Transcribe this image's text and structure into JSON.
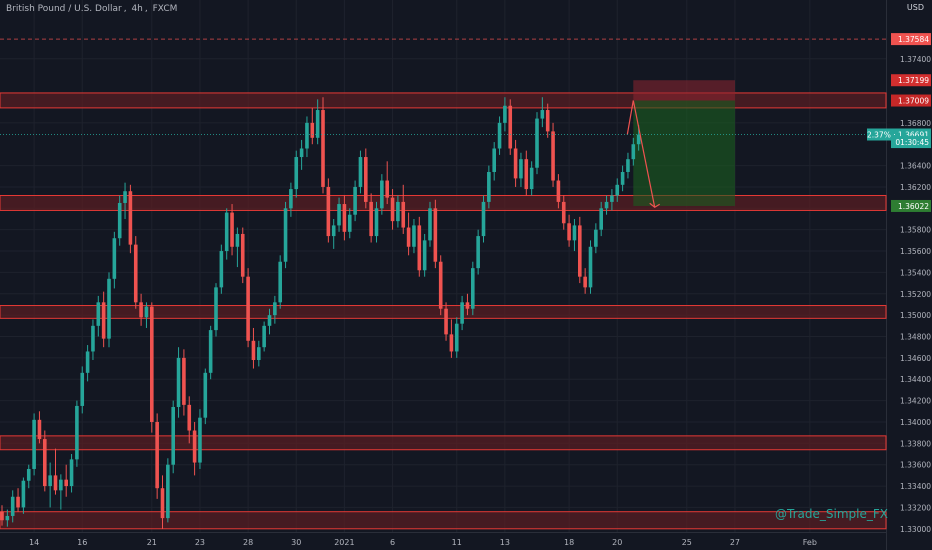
{
  "header": {
    "symbol": "British Pound / U.S. Dollar",
    "interval": "4h",
    "exchange": "FXCM",
    "sep1": ",",
    "sep2": ","
  },
  "currency_label": "USD",
  "watermark": "@Trade_Simple_FX",
  "colors": {
    "background": "#131722",
    "up": "#26a69a",
    "down": "#ef5350",
    "zone_fill": "#5b1e22",
    "zone_border": "#e53935",
    "grid": "#1e222d",
    "axis_text": "#b2b5be"
  },
  "chart_data": {
    "type": "candlestick",
    "ylim": [
      1.3297,
      1.3795
    ],
    "y_ticks": [
      "1.33000",
      "1.33200",
      "1.33400",
      "1.33600",
      "1.33800",
      "1.34000",
      "1.34200",
      "1.34400",
      "1.34600",
      "1.34800",
      "1.35000",
      "1.35200",
      "1.35400",
      "1.35600",
      "1.35800",
      "1.36000",
      "1.36200",
      "1.36400",
      "1.36800",
      "1.37400"
    ],
    "x_ticks": [
      {
        "label": "14",
        "index": 6
      },
      {
        "label": "16",
        "index": 15
      },
      {
        "label": "21",
        "index": 28
      },
      {
        "label": "23",
        "index": 37
      },
      {
        "label": "28",
        "index": 46
      },
      {
        "label": "30",
        "index": 55
      },
      {
        "label": "2021",
        "index": 64
      },
      {
        "label": "6",
        "index": 73
      },
      {
        "label": "11",
        "index": 85
      },
      {
        "label": "13",
        "index": 94
      },
      {
        "label": "18",
        "index": 106
      },
      {
        "label": "20",
        "index": 115
      },
      {
        "label": "25",
        "index": 128
      },
      {
        "label": "27",
        "index": 137
      },
      {
        "label": "Feb",
        "index": 151
      }
    ],
    "price_labels": [
      {
        "text": "1.37584",
        "value": 1.37584,
        "color": "#ef5350",
        "dashed": true
      },
      {
        "text": "1.37199",
        "value": 1.37199,
        "color": "#d32f2f"
      },
      {
        "text": "1.37009",
        "value": 1.37009,
        "color": "#c62828"
      },
      {
        "text": "2.37% · 1.36691",
        "value": 1.36691,
        "color": "#26a69a",
        "dotted": true
      },
      {
        "text": "01:30:45",
        "value": 1.3662,
        "color": "#26a69a"
      },
      {
        "text": "1.36022",
        "value": 1.36022,
        "color": "#2e7d32"
      }
    ],
    "zones": [
      {
        "low": 1.3694,
        "high": 1.3708
      },
      {
        "low": 1.3598,
        "high": 1.3612
      },
      {
        "low": 1.3497,
        "high": 1.3509
      },
      {
        "low": 1.3374,
        "high": 1.3387
      },
      {
        "low": 1.33,
        "high": 1.3316
      }
    ],
    "position": {
      "start_index": 118,
      "end_index": 137,
      "entry": 1.37009,
      "stop": 1.37199,
      "target": 1.36022
    },
    "projection": [
      {
        "index": 118,
        "value": 1.37009
      },
      {
        "index": 122,
        "value": 1.3601
      }
    ],
    "candles": [
      [
        1.3316,
        1.3322,
        1.3303,
        1.3308
      ],
      [
        1.3308,
        1.3318,
        1.3302,
        1.3312
      ],
      [
        1.3312,
        1.3336,
        1.3306,
        1.333
      ],
      [
        1.333,
        1.3338,
        1.3316,
        1.332
      ],
      [
        1.332,
        1.3348,
        1.3314,
        1.3345
      ],
      [
        1.3345,
        1.336,
        1.3338,
        1.3356
      ],
      [
        1.3356,
        1.3408,
        1.335,
        1.3402
      ],
      [
        1.3402,
        1.341,
        1.338,
        1.3384
      ],
      [
        1.3384,
        1.3392,
        1.3335,
        1.334
      ],
      [
        1.334,
        1.3362,
        1.332,
        1.335
      ],
      [
        1.335,
        1.3375,
        1.3332,
        1.3336
      ],
      [
        1.3336,
        1.3351,
        1.3318,
        1.3346
      ],
      [
        1.3346,
        1.336,
        1.333,
        1.334
      ],
      [
        1.334,
        1.337,
        1.3334,
        1.3365
      ],
      [
        1.3365,
        1.342,
        1.3358,
        1.3415
      ],
      [
        1.3415,
        1.3452,
        1.3408,
        1.3446
      ],
      [
        1.3446,
        1.3472,
        1.3438,
        1.3466
      ],
      [
        1.3466,
        1.3496,
        1.3458,
        1.349
      ],
      [
        1.349,
        1.3518,
        1.348,
        1.3512
      ],
      [
        1.3512,
        1.3522,
        1.347,
        1.3478
      ],
      [
        1.3478,
        1.354,
        1.347,
        1.3534
      ],
      [
        1.3534,
        1.3578,
        1.3525,
        1.3572
      ],
      [
        1.3572,
        1.3612,
        1.3565,
        1.3605
      ],
      [
        1.3605,
        1.3624,
        1.359,
        1.3616
      ],
      [
        1.3616,
        1.3622,
        1.3558,
        1.3566
      ],
      [
        1.3566,
        1.3574,
        1.3506,
        1.3512
      ],
      [
        1.3512,
        1.352,
        1.349,
        1.3498
      ],
      [
        1.3498,
        1.3512,
        1.3488,
        1.3508
      ],
      [
        1.3508,
        1.3512,
        1.339,
        1.34
      ],
      [
        1.34,
        1.3408,
        1.3328,
        1.3338
      ],
      [
        1.3338,
        1.335,
        1.33,
        1.331
      ],
      [
        1.331,
        1.3366,
        1.3306,
        1.336
      ],
      [
        1.336,
        1.342,
        1.3352,
        1.3414
      ],
      [
        1.3414,
        1.347,
        1.3404,
        1.346
      ],
      [
        1.346,
        1.3468,
        1.3406,
        1.3416
      ],
      [
        1.3416,
        1.3424,
        1.338,
        1.3392
      ],
      [
        1.3392,
        1.34,
        1.335,
        1.3362
      ],
      [
        1.3362,
        1.3412,
        1.3356,
        1.3404
      ],
      [
        1.3404,
        1.345,
        1.3398,
        1.3446
      ],
      [
        1.3446,
        1.349,
        1.344,
        1.3486
      ],
      [
        1.3486,
        1.353,
        1.348,
        1.3526
      ],
      [
        1.3526,
        1.3566,
        1.352,
        1.356
      ],
      [
        1.356,
        1.36,
        1.3552,
        1.3596
      ],
      [
        1.3596,
        1.3604,
        1.3556,
        1.3564
      ],
      [
        1.3564,
        1.3582,
        1.3545,
        1.3576
      ],
      [
        1.3576,
        1.3582,
        1.353,
        1.3536
      ],
      [
        1.3536,
        1.3544,
        1.347,
        1.3476
      ],
      [
        1.3476,
        1.3488,
        1.345,
        1.3458
      ],
      [
        1.3458,
        1.3476,
        1.3452,
        1.347
      ],
      [
        1.347,
        1.3494,
        1.3466,
        1.349
      ],
      [
        1.349,
        1.3506,
        1.3482,
        1.35
      ],
      [
        1.35,
        1.3518,
        1.3492,
        1.3512
      ],
      [
        1.3512,
        1.3556,
        1.3506,
        1.355
      ],
      [
        1.355,
        1.3606,
        1.3544,
        1.36
      ],
      [
        1.36,
        1.3624,
        1.3592,
        1.3618
      ],
      [
        1.3618,
        1.3654,
        1.361,
        1.3648
      ],
      [
        1.3648,
        1.3664,
        1.3636,
        1.3656
      ],
      [
        1.3656,
        1.3686,
        1.3648,
        1.368
      ],
      [
        1.368,
        1.3694,
        1.366,
        1.3666
      ],
      [
        1.3666,
        1.3702,
        1.366,
        1.3692
      ],
      [
        1.3692,
        1.3704,
        1.3614,
        1.362
      ],
      [
        1.362,
        1.3628,
        1.3568,
        1.3574
      ],
      [
        1.3574,
        1.359,
        1.3562,
        1.3584
      ],
      [
        1.3584,
        1.361,
        1.3578,
        1.3604
      ],
      [
        1.3604,
        1.3612,
        1.357,
        1.3578
      ],
      [
        1.3578,
        1.36,
        1.3572,
        1.3594
      ],
      [
        1.3594,
        1.3626,
        1.3588,
        1.362
      ],
      [
        1.362,
        1.3654,
        1.3614,
        1.3648
      ],
      [
        1.3648,
        1.3656,
        1.36,
        1.3606
      ],
      [
        1.3606,
        1.3614,
        1.3568,
        1.3574
      ],
      [
        1.3574,
        1.3606,
        1.3568,
        1.36
      ],
      [
        1.36,
        1.3632,
        1.3594,
        1.3626
      ],
      [
        1.3626,
        1.3644,
        1.3604,
        1.361
      ],
      [
        1.361,
        1.3618,
        1.358,
        1.3588
      ],
      [
        1.3588,
        1.3612,
        1.3582,
        1.3606
      ],
      [
        1.3606,
        1.3622,
        1.3576,
        1.3582
      ],
      [
        1.3582,
        1.3596,
        1.3556,
        1.3564
      ],
      [
        1.3564,
        1.359,
        1.3558,
        1.3584
      ],
      [
        1.3584,
        1.3592,
        1.3536,
        1.3542
      ],
      [
        1.3542,
        1.3576,
        1.3536,
        1.357
      ],
      [
        1.357,
        1.3606,
        1.3564,
        1.36
      ],
      [
        1.36,
        1.3608,
        1.3544,
        1.355
      ],
      [
        1.355,
        1.3556,
        1.35,
        1.3506
      ],
      [
        1.3506,
        1.3512,
        1.3476,
        1.3482
      ],
      [
        1.3482,
        1.3496,
        1.346,
        1.3466
      ],
      [
        1.3466,
        1.3498,
        1.346,
        1.3492
      ],
      [
        1.3492,
        1.3518,
        1.3486,
        1.3512
      ],
      [
        1.3512,
        1.352,
        1.35,
        1.3506
      ],
      [
        1.3506,
        1.355,
        1.35,
        1.3544
      ],
      [
        1.3544,
        1.358,
        1.3538,
        1.3574
      ],
      [
        1.3574,
        1.3612,
        1.3568,
        1.3606
      ],
      [
        1.3606,
        1.364,
        1.36,
        1.3634
      ],
      [
        1.3634,
        1.3662,
        1.3626,
        1.3656
      ],
      [
        1.3656,
        1.3686,
        1.365,
        1.368
      ],
      [
        1.368,
        1.3704,
        1.3672,
        1.3696
      ],
      [
        1.3696,
        1.3702,
        1.365,
        1.3656
      ],
      [
        1.3656,
        1.3664,
        1.362,
        1.3628
      ],
      [
        1.3628,
        1.3652,
        1.362,
        1.3646
      ],
      [
        1.3646,
        1.3654,
        1.3612,
        1.3618
      ],
      [
        1.3618,
        1.3644,
        1.3612,
        1.3638
      ],
      [
        1.3638,
        1.369,
        1.3632,
        1.3684
      ],
      [
        1.3684,
        1.3704,
        1.3676,
        1.3692
      ],
      [
        1.3692,
        1.3698,
        1.3666,
        1.3672
      ],
      [
        1.3672,
        1.368,
        1.362,
        1.3626
      ],
      [
        1.3626,
        1.3632,
        1.36,
        1.3606
      ],
      [
        1.3606,
        1.3612,
        1.358,
        1.3586
      ],
      [
        1.3586,
        1.3594,
        1.3564,
        1.357
      ],
      [
        1.357,
        1.359,
        1.356,
        1.3584
      ],
      [
        1.3584,
        1.3592,
        1.353,
        1.3536
      ],
      [
        1.3536,
        1.3544,
        1.352,
        1.3526
      ],
      [
        1.3526,
        1.357,
        1.352,
        1.3564
      ],
      [
        1.3564,
        1.3586,
        1.3558,
        1.358
      ],
      [
        1.358,
        1.3606,
        1.3574,
        1.36
      ],
      [
        1.36,
        1.3612,
        1.3594,
        1.3606
      ],
      [
        1.3606,
        1.3618,
        1.3598,
        1.3612
      ],
      [
        1.3612,
        1.3628,
        1.3606,
        1.3622
      ],
      [
        1.3622,
        1.364,
        1.3616,
        1.3634
      ],
      [
        1.3634,
        1.3652,
        1.3628,
        1.3646
      ],
      [
        1.3646,
        1.3666,
        1.364,
        1.366
      ],
      [
        1.366,
        1.3678,
        1.3654,
        1.3669
      ]
    ]
  }
}
